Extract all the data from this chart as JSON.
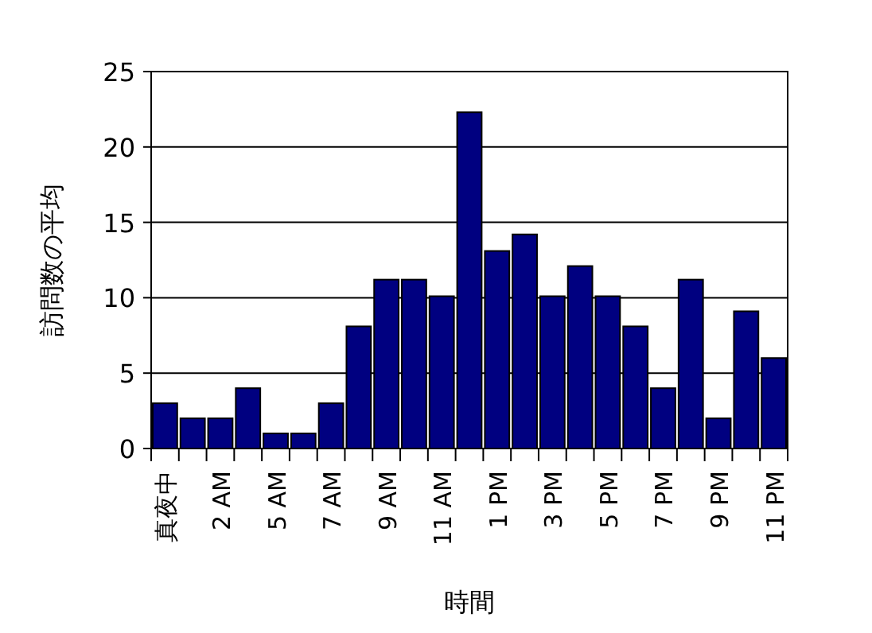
{
  "chart_data": {
    "type": "bar",
    "xlabel": "時間",
    "ylabel": "訪問数の平均",
    "categories": [
      "真夜中",
      null,
      "2 AM",
      null,
      "5 AM",
      null,
      "7 AM",
      null,
      "9 AM",
      null,
      "11 AM",
      null,
      "1 PM",
      null,
      "3 PM",
      null,
      "5 PM",
      null,
      "7 PM",
      null,
      "9 PM",
      null,
      "11 PM"
    ],
    "values": [
      3,
      2,
      2,
      4,
      1,
      1,
      3,
      8.1,
      11.2,
      11.2,
      10.1,
      22.3,
      13.1,
      14.2,
      10.1,
      12.1,
      10.1,
      8.1,
      4,
      11.2,
      2,
      9.1,
      6
    ],
    "color": "#000080",
    "ylim": [
      0,
      25
    ],
    "yticks": [
      0,
      5,
      10,
      15,
      20,
      25
    ],
    "grid": "y"
  }
}
